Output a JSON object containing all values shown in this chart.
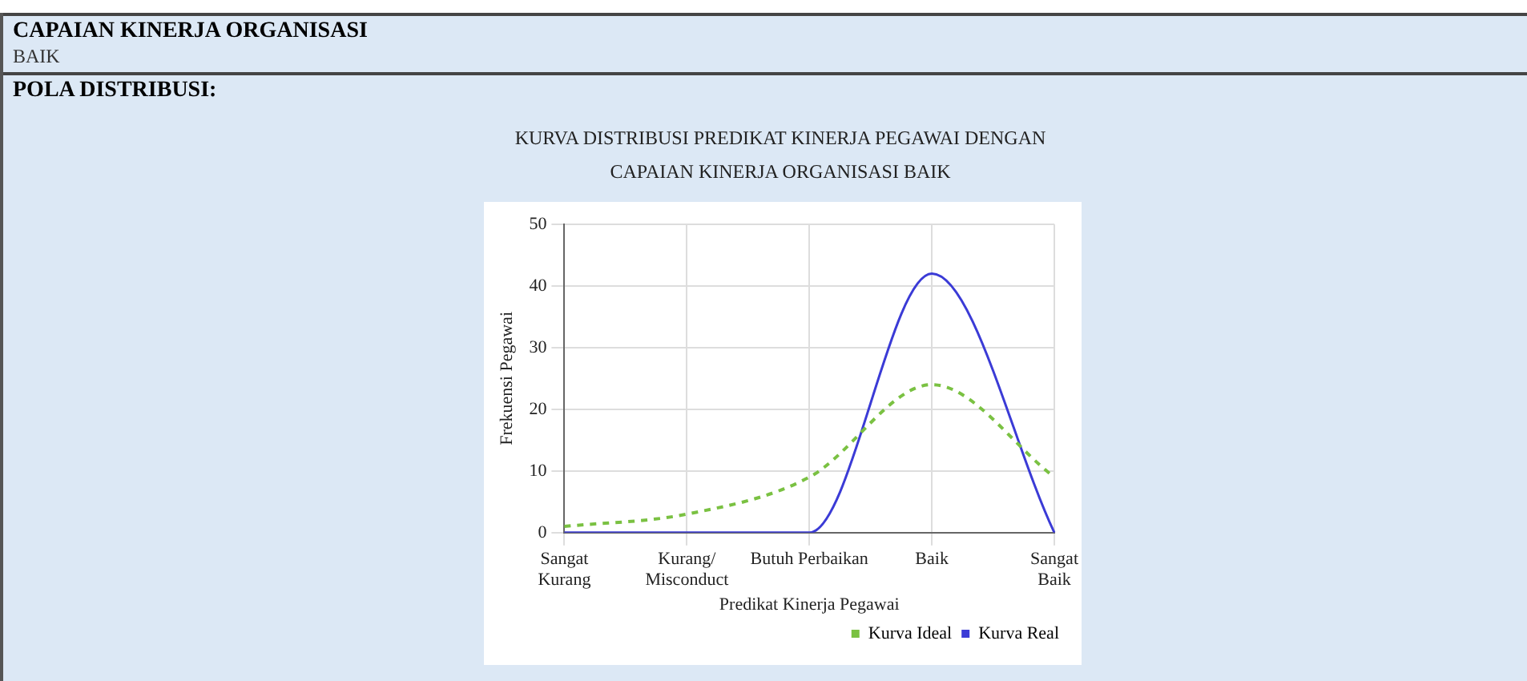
{
  "chart_data": {
    "type": "line",
    "title": "KURVA DISTRIBUSI PREDIKAT KINERJA PEGAWAI DENGAN\nCAPAIAN KINERJA ORGANISASI BAIK",
    "annotations": [
      "CAPAIAN KINERJA ORGANISASI",
      "BAIK",
      "POLA DISTRIBUSI:"
    ],
    "xlabel": "Predikat Kinerja Pegawai",
    "ylabel": "Frekuensi Pegawai",
    "categories": [
      "Sangat\nKurang",
      "Kurang/\nMisconduct",
      "Butuh Perbaikan",
      "Baik",
      "Sangat\nBaik"
    ],
    "series": [
      {
        "name": "Kurva Ideal",
        "color": "#7ac142",
        "values": [
          1,
          3,
          9,
          24,
          9
        ],
        "line_style": "dashed"
      },
      {
        "name": "Kurva Real",
        "color": "#3b3bd6",
        "values": [
          0,
          0,
          0,
          42,
          0
        ],
        "line_style": "solid"
      }
    ],
    "ylim": [
      0,
      50
    ],
    "yticks": [
      0,
      10,
      20,
      30,
      40,
      50
    ],
    "grid": true,
    "legend": "bottom right",
    "marker": "none"
  }
}
